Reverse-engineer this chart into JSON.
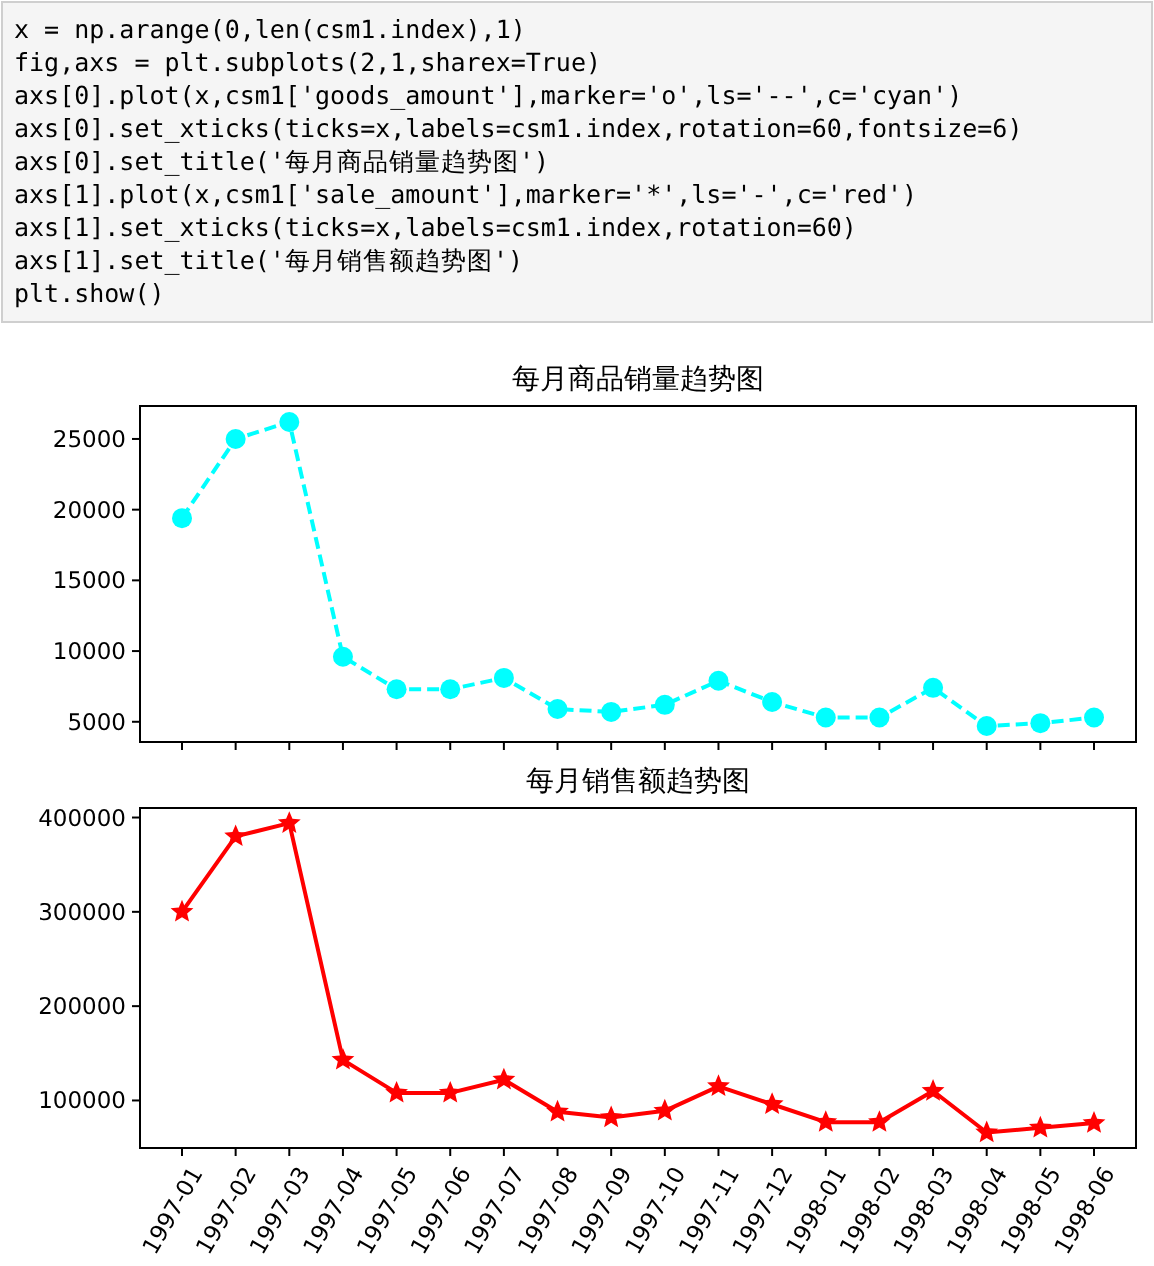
{
  "chart_data": [
    {
      "type": "line",
      "title": "每月商品销量趋势图",
      "categories": [
        "1997-01",
        "1997-02",
        "1997-03",
        "1997-04",
        "1997-05",
        "1997-06",
        "1997-07",
        "1997-08",
        "1997-09",
        "1997-10",
        "1997-11",
        "1997-12",
        "1998-01",
        "1998-02",
        "1998-03",
        "1998-04",
        "1998-05",
        "1998-06"
      ],
      "series": [
        {
          "color": "#00ffff",
          "marker": "circle",
          "line_style": "dashed",
          "values": [
            19400,
            25000,
            26200,
            9600,
            7300,
            7300,
            8100,
            5900,
            5700,
            6200,
            7900,
            6400,
            5300,
            5300,
            7400,
            4700,
            4900,
            5300
          ]
        }
      ],
      "ylim": [
        3570,
        27330
      ],
      "yticks": [
        5000,
        10000,
        15000,
        20000,
        25000
      ],
      "tick_labels": "y",
      "grid": false,
      "annotations": [
        "x = np.arange(0,len(csm1.index),1)",
        "fig,axs = plt.subplots(2,1,sharex=True)",
        "axs[0].plot(x,csm1['goods_amount'],marker='o',ls='--',c='cyan')",
        "axs[0].set_xticks(ticks=x,labels=csm1.index,rotation=60,fontsize=6)",
        "axs[0].set_title('每月商品销量趋势图')",
        "axs[1].plot(x,csm1['sale_amount'],marker='*',ls='-',c='red')",
        "axs[1].set_xticks(ticks=x,labels=csm1.index,rotation=60)",
        "axs[1].set_title('每月销售额趋势图')",
        "plt.show()"
      ]
    },
    {
      "type": "line",
      "title": "每月销售额趋势图",
      "categories": [
        "1997-01",
        "1997-02",
        "1997-03",
        "1997-04",
        "1997-05",
        "1997-06",
        "1997-07",
        "1997-08",
        "1997-09",
        "1997-10",
        "1997-11",
        "1997-12",
        "1998-01",
        "1998-02",
        "1998-03",
        "1998-04",
        "1998-05",
        "1998-06"
      ],
      "series": [
        {
          "color": "#ff0000",
          "marker": "star",
          "line_style": "solid",
          "values": [
            300000,
            380000,
            394000,
            143000,
            108000,
            108000,
            122000,
            88000,
            82000,
            89000,
            115000,
            96000,
            77000,
            77000,
            110000,
            66000,
            71000,
            76000
          ]
        }
      ],
      "ylim": [
        49600,
        410100
      ],
      "yticks": [
        100000,
        200000,
        300000,
        400000
      ],
      "grid": false
    }
  ]
}
